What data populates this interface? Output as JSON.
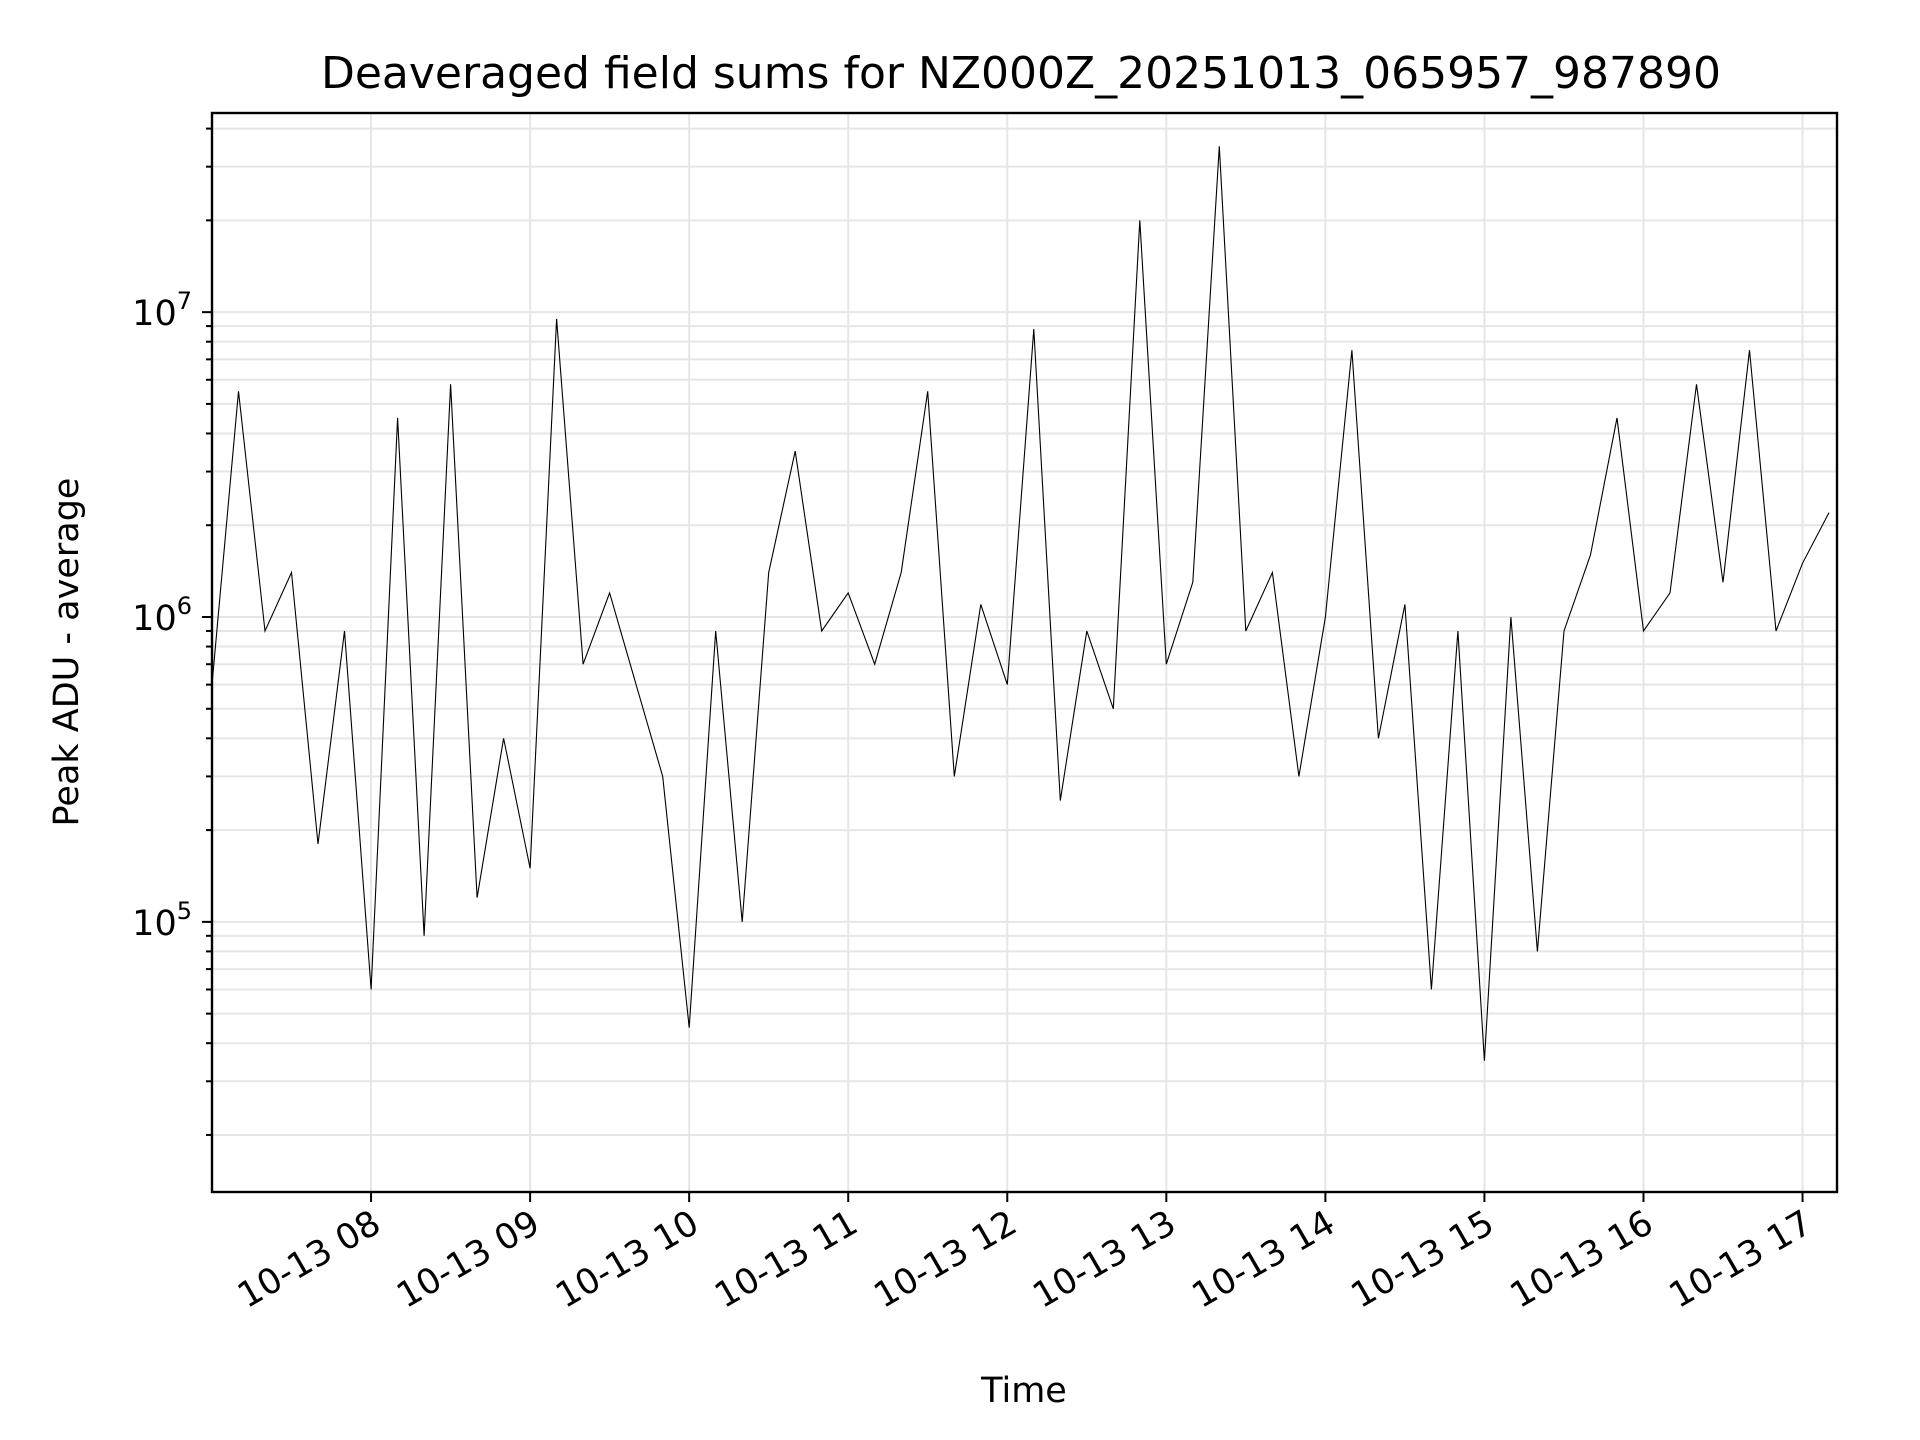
{
  "chart_data": {
    "type": "line",
    "title": "Deaveraged field sums for NZ000Z_20251013_065957_987890",
    "xlabel": "Time",
    "ylabel": "Peak ADU - average",
    "yscale": "log",
    "ylim": [
      13000,
      45000000
    ],
    "xlim": [
      "2025-10-13 07:00",
      "2025-10-13 17:13"
    ],
    "grid": true,
    "line_color": "#000000",
    "x_ticks": [
      "10-13 08",
      "10-13 09",
      "10-13 10",
      "10-13 11",
      "10-13 12",
      "10-13 13",
      "10-13 14",
      "10-13 15",
      "10-13 16",
      "10-13 17"
    ],
    "x_tick_times": [
      "2025-10-13 08:00",
      "2025-10-13 09:00",
      "2025-10-13 10:00",
      "2025-10-13 11:00",
      "2025-10-13 12:00",
      "2025-10-13 13:00",
      "2025-10-13 14:00",
      "2025-10-13 15:00",
      "2025-10-13 16:00",
      "2025-10-13 17:00"
    ],
    "y_ticks": [
      {
        "value": 100000,
        "base": "10",
        "exp": "5"
      },
      {
        "value": 1000000,
        "base": "10",
        "exp": "6"
      },
      {
        "value": 10000000,
        "base": "10",
        "exp": "7"
      }
    ],
    "series": [
      {
        "x": [
          "2025-10-13 07:00",
          "2025-10-13 07:10",
          "2025-10-13 07:20",
          "2025-10-13 07:30",
          "2025-10-13 07:40",
          "2025-10-13 07:50",
          "2025-10-13 08:00",
          "2025-10-13 08:10",
          "2025-10-13 08:20",
          "2025-10-13 08:30",
          "2025-10-13 08:40",
          "2025-10-13 08:50",
          "2025-10-13 09:00",
          "2025-10-13 09:10",
          "2025-10-13 09:20",
          "2025-10-13 09:30",
          "2025-10-13 09:40",
          "2025-10-13 09:50",
          "2025-10-13 10:00",
          "2025-10-13 10:10",
          "2025-10-13 10:20",
          "2025-10-13 10:30",
          "2025-10-13 10:40",
          "2025-10-13 10:50",
          "2025-10-13 11:00",
          "2025-10-13 11:10",
          "2025-10-13 11:20",
          "2025-10-13 11:30",
          "2025-10-13 11:40",
          "2025-10-13 11:50",
          "2025-10-13 12:00",
          "2025-10-13 12:10",
          "2025-10-13 12:20",
          "2025-10-13 12:30",
          "2025-10-13 12:40",
          "2025-10-13 12:50",
          "2025-10-13 13:00",
          "2025-10-13 13:10",
          "2025-10-13 13:20",
          "2025-10-13 13:30",
          "2025-10-13 13:40",
          "2025-10-13 13:50",
          "2025-10-13 14:00",
          "2025-10-13 14:10",
          "2025-10-13 14:20",
          "2025-10-13 14:30",
          "2025-10-13 14:40",
          "2025-10-13 14:50",
          "2025-10-13 15:00",
          "2025-10-13 15:10",
          "2025-10-13 15:20",
          "2025-10-13 15:30",
          "2025-10-13 15:40",
          "2025-10-13 15:50",
          "2025-10-13 16:00",
          "2025-10-13 16:10",
          "2025-10-13 16:20",
          "2025-10-13 16:30",
          "2025-10-13 16:40",
          "2025-10-13 16:50",
          "2025-10-13 17:00",
          "2025-10-13 17:10"
        ],
        "y": [
          600000,
          5500000,
          900000,
          1400000,
          180000,
          900000,
          60000,
          4500000,
          90000,
          5800000,
          120000,
          400000,
          150000,
          9500000,
          700000,
          1200000,
          600000,
          300000,
          45000,
          900000,
          100000,
          1400000,
          3500000,
          900000,
          1200000,
          700000,
          1400000,
          5500000,
          300000,
          1100000,
          600000,
          8800000,
          250000,
          900000,
          500000,
          20000000,
          700000,
          1300000,
          35000000,
          900000,
          1400000,
          300000,
          1000000,
          7500000,
          400000,
          1100000,
          60000,
          900000,
          35000,
          1000000,
          80000,
          900000,
          1600000,
          4500000,
          900000,
          1200000,
          5800000,
          1300000,
          7500000,
          900000,
          1500000,
          2200000
        ]
      }
    ]
  }
}
